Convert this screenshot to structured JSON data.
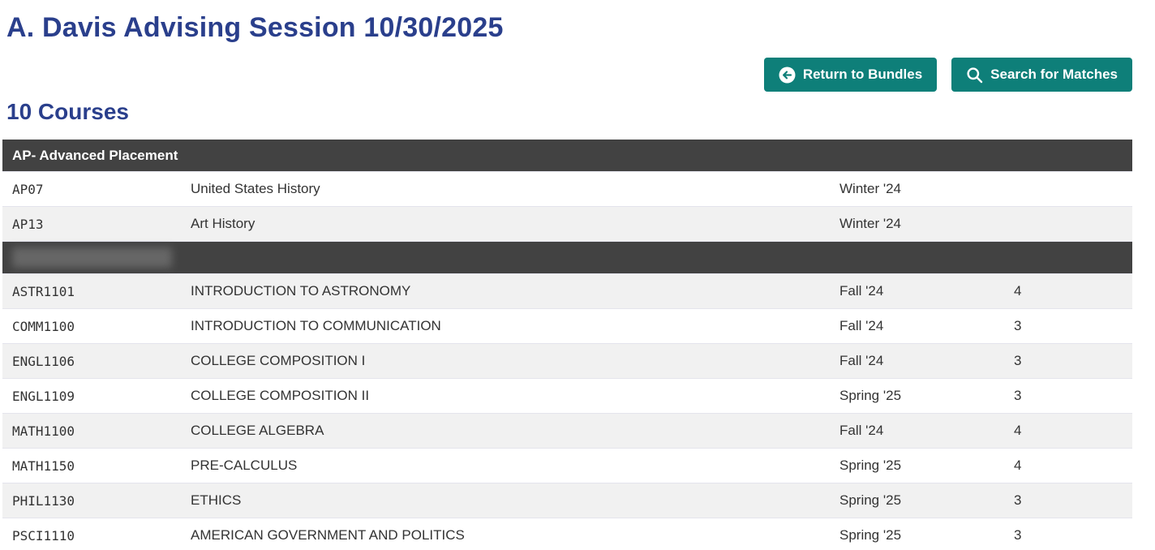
{
  "page": {
    "title": "A. Davis Advising Session 10/30/2025",
    "course_count_label": "10 Courses"
  },
  "toolbar": {
    "return_button_label": "Return to Bundles",
    "search_button_label": "Search for Matches",
    "icons": {
      "return_icon": "arrow-left-circle-icon",
      "search_icon": "search-icon"
    }
  },
  "colors": {
    "accent_navy": "#2a3f8c",
    "accent_teal": "#0e7f79",
    "section_header_bg": "#424242",
    "row_stripe_bg": "#f1f1f1",
    "text": "#333333"
  },
  "table": {
    "sections": [
      {
        "name": "AP- Advanced Placement",
        "redacted": false,
        "rows": [
          {
            "code": "AP07",
            "title": "United States History",
            "term": "Winter '24",
            "credits": ""
          },
          {
            "code": "AP13",
            "title": "Art History",
            "term": "Winter '24",
            "credits": ""
          }
        ]
      },
      {
        "name": "",
        "redacted": true,
        "rows": [
          {
            "code": "ASTR1101",
            "title": "INTRODUCTION TO ASTRONOMY",
            "term": "Fall '24",
            "credits": "4"
          },
          {
            "code": "COMM1100",
            "title": "INTRODUCTION TO COMMUNICATION",
            "term": "Fall '24",
            "credits": "3"
          },
          {
            "code": "ENGL1106",
            "title": "COLLEGE COMPOSITION I",
            "term": "Fall '24",
            "credits": "3"
          },
          {
            "code": "ENGL1109",
            "title": "COLLEGE COMPOSITION II",
            "term": "Spring '25",
            "credits": "3"
          },
          {
            "code": "MATH1100",
            "title": "COLLEGE ALGEBRA",
            "term": "Fall '24",
            "credits": "4"
          },
          {
            "code": "MATH1150",
            "title": "PRE-CALCULUS",
            "term": "Spring '25",
            "credits": "4"
          },
          {
            "code": "PHIL1130",
            "title": "ETHICS",
            "term": "Spring '25",
            "credits": "3"
          },
          {
            "code": "PSCI1110",
            "title": "AMERICAN GOVERNMENT AND POLITICS",
            "term": "Spring '25",
            "credits": "3"
          }
        ]
      }
    ]
  }
}
